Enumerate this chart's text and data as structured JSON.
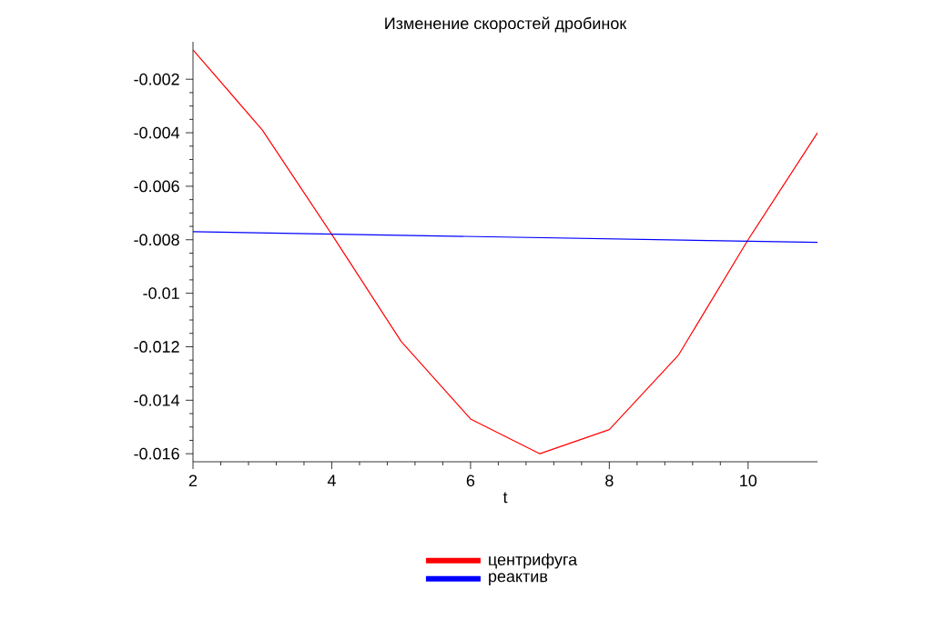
{
  "chart_data": {
    "type": "line",
    "title": "Изменение скоростей дробинок",
    "xlabel": "t",
    "xlim": [
      2,
      11
    ],
    "xticks": [
      2,
      4,
      6,
      8,
      10
    ],
    "ylim": [
      -0.0163,
      -0.0006
    ],
    "yticks": [
      -0.002,
      -0.004,
      -0.006,
      -0.008,
      -0.01,
      -0.012,
      -0.014,
      -0.016
    ],
    "legend": "bottom",
    "grid": false,
    "marker": "none",
    "line_style": "solid",
    "series": [
      {
        "name": "центрифуга",
        "color": "#ff0000",
        "x": [
          2,
          3,
          4,
          5,
          6,
          7,
          8,
          9,
          10,
          11
        ],
        "values": [
          -0.0009,
          -0.0039,
          -0.0078,
          -0.0118,
          -0.0147,
          -0.016,
          -0.0151,
          -0.0123,
          -0.008,
          -0.004
        ]
      },
      {
        "name": "реактив",
        "color": "#0000ff",
        "x": [
          2,
          11
        ],
        "values": [
          -0.0077,
          -0.0081
        ]
      }
    ]
  }
}
